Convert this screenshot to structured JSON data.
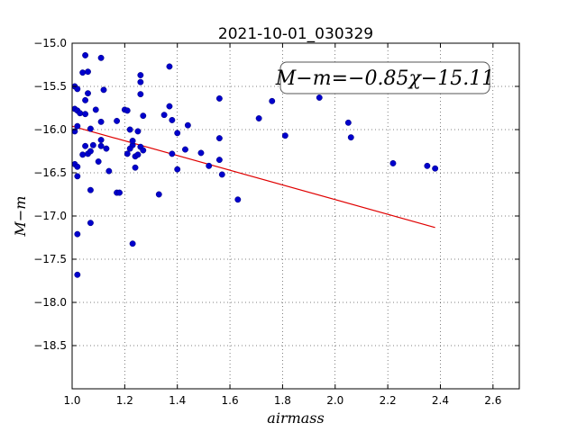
{
  "chart_data": {
    "type": "scatter",
    "title": "2021-10-01_030329",
    "xlabel": "airmass",
    "ylabel": "M−m",
    "xlim": [
      1.0,
      2.7
    ],
    "ylim": [
      -15.0,
      -19.0
    ],
    "y_inverted": true,
    "x_ticks": [
      "1.0",
      "1.2",
      "1.4",
      "1.6",
      "1.8",
      "2.0",
      "2.2",
      "2.4",
      "2.6"
    ],
    "y_ticks": [
      "−15.0",
      "−15.5",
      "−16.0",
      "−16.5",
      "−17.0",
      "−17.5",
      "−18.0",
      "−18.5"
    ],
    "grid": true,
    "annotation": "M−m=−0.85χ−15.11",
    "colors": {
      "points": "#0000cc",
      "fit_line": "#e00000"
    },
    "fit_line": {
      "slope": -0.85,
      "intercept": -15.11,
      "x_range": [
        1.0,
        2.38
      ]
    },
    "points": [
      [
        1.01,
        -15.5
      ],
      [
        1.02,
        -15.53
      ],
      [
        1.04,
        -15.34
      ],
      [
        1.06,
        -15.33
      ],
      [
        1.05,
        -15.14
      ],
      [
        1.11,
        -15.17
      ],
      [
        1.01,
        -15.76
      ],
      [
        1.02,
        -15.78
      ],
      [
        1.03,
        -15.81
      ],
      [
        1.06,
        -15.58
      ],
      [
        1.05,
        -15.66
      ],
      [
        1.05,
        -15.82
      ],
      [
        1.09,
        -15.77
      ],
      [
        1.12,
        -15.54
      ],
      [
        1.02,
        -15.96
      ],
      [
        1.01,
        -16.02
      ],
      [
        1.07,
        -15.99
      ],
      [
        1.11,
        -15.91
      ],
      [
        1.05,
        -16.19
      ],
      [
        1.08,
        -16.18
      ],
      [
        1.11,
        -16.12
      ],
      [
        1.11,
        -16.19
      ],
      [
        1.13,
        -16.22
      ],
      [
        1.04,
        -16.29
      ],
      [
        1.06,
        -16.28
      ],
      [
        1.07,
        -16.25
      ],
      [
        1.1,
        -16.37
      ],
      [
        1.01,
        -16.4
      ],
      [
        1.02,
        -16.43
      ],
      [
        1.02,
        -16.54
      ],
      [
        1.14,
        -16.48
      ],
      [
        1.07,
        -16.7
      ],
      [
        1.17,
        -16.73
      ],
      [
        1.18,
        -16.73
      ],
      [
        1.02,
        -17.21
      ],
      [
        1.07,
        -17.08
      ],
      [
        1.02,
        -17.68
      ],
      [
        1.17,
        -15.9
      ],
      [
        1.2,
        -15.77
      ],
      [
        1.21,
        -15.78
      ],
      [
        1.22,
        -16.0
      ],
      [
        1.25,
        -16.02
      ],
      [
        1.26,
        -15.37
      ],
      [
        1.26,
        -15.45
      ],
      [
        1.26,
        -15.59
      ],
      [
        1.27,
        -15.84
      ],
      [
        1.23,
        -16.18
      ],
      [
        1.22,
        -16.22
      ],
      [
        1.21,
        -16.28
      ],
      [
        1.24,
        -16.31
      ],
      [
        1.25,
        -16.29
      ],
      [
        1.26,
        -16.2
      ],
      [
        1.27,
        -16.24
      ],
      [
        1.24,
        -16.44
      ],
      [
        1.23,
        -16.13
      ],
      [
        1.23,
        -17.32
      ],
      [
        1.33,
        -16.75
      ],
      [
        1.35,
        -15.83
      ],
      [
        1.37,
        -15.27
      ],
      [
        1.37,
        -15.73
      ],
      [
        1.38,
        -15.89
      ],
      [
        1.4,
        -16.04
      ],
      [
        1.38,
        -16.28
      ],
      [
        1.43,
        -16.23
      ],
      [
        1.44,
        -15.95
      ],
      [
        1.4,
        -16.46
      ],
      [
        1.49,
        -16.27
      ],
      [
        1.52,
        -16.42
      ],
      [
        1.56,
        -15.64
      ],
      [
        1.56,
        -16.1
      ],
      [
        1.56,
        -16.35
      ],
      [
        1.57,
        -16.52
      ],
      [
        1.63,
        -16.81
      ],
      [
        1.71,
        -15.87
      ],
      [
        1.76,
        -15.67
      ],
      [
        1.81,
        -16.07
      ],
      [
        1.94,
        -15.63
      ],
      [
        2.05,
        -15.92
      ],
      [
        2.06,
        -16.09
      ],
      [
        2.22,
        -16.39
      ],
      [
        2.35,
        -16.42
      ],
      [
        2.38,
        -16.45
      ]
    ]
  }
}
